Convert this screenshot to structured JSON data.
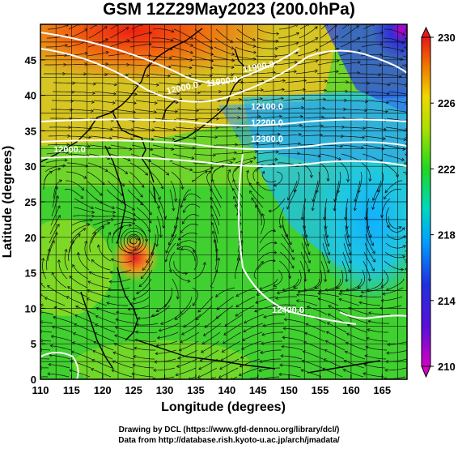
{
  "title": "GSM 12Z29May2023 (200.0hPa)",
  "x_axis": {
    "label": "Longitude (degrees)",
    "ticks": [
      "110",
      "115",
      "120",
      "125",
      "130",
      "135",
      "140",
      "145",
      "150",
      "155",
      "160",
      "165"
    ]
  },
  "y_axis": {
    "label": "Latitude (degrees)",
    "ticks": [
      "0",
      "5",
      "10",
      "15",
      "20",
      "25",
      "30",
      "35",
      "40",
      "45"
    ]
  },
  "colorbar": {
    "ticks": [
      "210",
      "214",
      "218",
      "222",
      "226",
      "230"
    ],
    "range": [
      210,
      230
    ],
    "colors": [
      "#d400c8",
      "#2020d0",
      "#00b4ff",
      "#20d820",
      "#e8e800",
      "#e82020"
    ]
  },
  "contour_labels": [
    "12000.0",
    "11900.0",
    "11900.0",
    "12100.0",
    "12200.0",
    "12300.0",
    "12000.0",
    "12400.0"
  ],
  "chart_data": {
    "type": "heatmap",
    "variable": "temperature field with streamlines and height contours",
    "xlim": [
      110,
      169
    ],
    "ylim": [
      0,
      50
    ],
    "vortex_center": {
      "lon": 125,
      "lat": 19.5
    }
  },
  "footer": {
    "line1": "Drawing by DCL (https://www.gfd-dennou.org/library/dcl/)",
    "line2": "Data from http://database.rish.kyoto-u.ac.jp/arch/jmadata/"
  }
}
